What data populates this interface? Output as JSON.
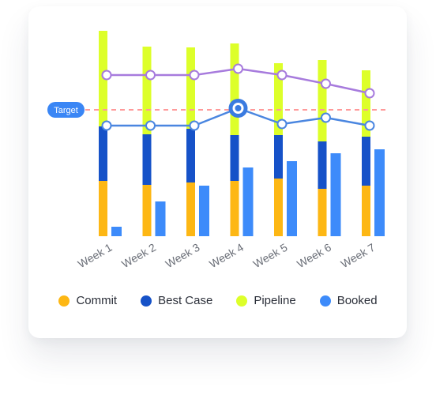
{
  "chart_data": {
    "type": "bar",
    "categories": [
      "Week 1",
      "Week 2",
      "Week 3",
      "Week 4",
      "Week 5",
      "Week 6",
      "Week 7"
    ],
    "stacked_series": [
      {
        "name": "Commit",
        "color": "#FDB714",
        "values": [
          70,
          65,
          68,
          70,
          73,
          60,
          64
        ]
      },
      {
        "name": "Best Case",
        "color": "#1652C8",
        "values": [
          69,
          64,
          68,
          58,
          55,
          60,
          62
        ]
      },
      {
        "name": "Pipeline",
        "color": "#DDFF2A",
        "values": [
          121,
          111,
          103,
          116,
          91,
          103,
          84
        ]
      }
    ],
    "bar_series": [
      {
        "name": "Booked",
        "color": "#3D8BFA",
        "values": [
          12,
          44,
          64,
          87,
          95,
          105,
          110
        ]
      }
    ],
    "line_series": [
      {
        "color": "#A77BDD",
        "values": [
          204,
          204,
          204,
          212,
          204,
          193,
          181
        ]
      },
      {
        "color": "#4A86E0",
        "values": [
          140,
          140,
          140,
          162,
          142,
          150,
          140
        ]
      }
    ],
    "highlight": {
      "category": "Week 4",
      "series_index": 1
    },
    "target": {
      "label": "Target",
      "value": 160,
      "color": "#FF9A9A"
    },
    "ylim": [
      0,
      270
    ],
    "legend": {
      "position": "bottom"
    }
  },
  "legend": [
    {
      "label": "Commit",
      "color": "#FDB714"
    },
    {
      "label": "Best Case",
      "color": "#1652C8"
    },
    {
      "label": "Pipeline",
      "color": "#DDFF2A"
    },
    {
      "label": "Booked",
      "color": "#3D8BFA"
    }
  ]
}
